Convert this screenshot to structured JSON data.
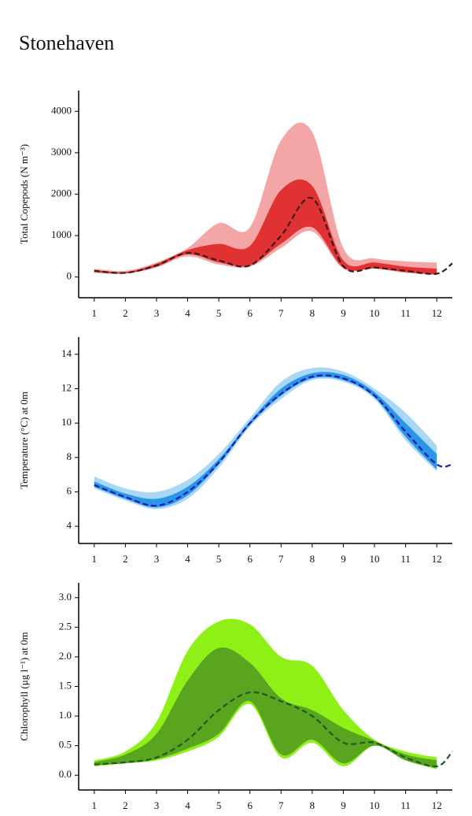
{
  "title": "Stonehaven",
  "chart_data": [
    {
      "type": "line",
      "ylabel": "Total Copepods (N m⁻³)",
      "x": [
        1,
        2,
        3,
        4,
        5,
        6,
        7,
        8,
        9,
        10,
        11,
        12,
        12.5
      ],
      "xlim": [
        0.5,
        12.5
      ],
      "xticks": [
        1,
        2,
        3,
        4,
        5,
        6,
        7,
        8,
        9,
        10,
        11,
        12
      ],
      "ylim": [
        -500,
        4500
      ],
      "yticks": [
        0,
        1000,
        2000,
        3000,
        4000
      ],
      "bands": [
        {
          "color": "#f4a6a6",
          "upper": [
            200,
            150,
            350,
            700,
            1300,
            1200,
            3300,
            3500,
            700,
            450,
            380,
            350,
            null
          ],
          "lower": [
            100,
            80,
            230,
            500,
            300,
            250,
            700,
            1100,
            200,
            200,
            100,
            50,
            null
          ]
        },
        {
          "color": "#e03232",
          "upper": [
            170,
            120,
            320,
            650,
            800,
            750,
            2100,
            2200,
            400,
            350,
            250,
            200,
            null
          ],
          "lower": [
            120,
            90,
            250,
            550,
            350,
            280,
            800,
            1200,
            230,
            210,
            120,
            60,
            null
          ]
        }
      ],
      "median": {
        "color": "#3a1a1a",
        "values": [
          150,
          100,
          280,
          580,
          400,
          280,
          1000,
          1900,
          260,
          230,
          150,
          80,
          330
        ]
      }
    },
    {
      "type": "line",
      "ylabel": "Temperature (°C) at 0m",
      "x": [
        1,
        2,
        3,
        4,
        5,
        6,
        7,
        8,
        9,
        10,
        11,
        12,
        12.5
      ],
      "xlim": [
        0.5,
        12.5
      ],
      "xticks": [
        1,
        2,
        3,
        4,
        5,
        6,
        7,
        8,
        9,
        10,
        11,
        12
      ],
      "ylim": [
        3,
        15
      ],
      "yticks": [
        4,
        6,
        8,
        10,
        12,
        14
      ],
      "bands": [
        {
          "color": "#a8d8f5",
          "upper": [
            6.9,
            6.2,
            6.0,
            6.7,
            8.2,
            10.3,
            12.4,
            13.2,
            13.0,
            12.0,
            10.6,
            8.7,
            null
          ],
          "lower": [
            6.2,
            5.5,
            5.0,
            5.6,
            7.4,
            9.8,
            11.4,
            12.5,
            12.4,
            11.4,
            9.0,
            7.2,
            null
          ]
        },
        {
          "color": "#2b95e6",
          "upper": [
            6.6,
            5.9,
            5.6,
            6.3,
            7.9,
            10.1,
            12.0,
            12.9,
            12.8,
            11.8,
            10.0,
            8.2,
            null
          ],
          "lower": [
            6.3,
            5.6,
            5.1,
            5.8,
            7.6,
            9.9,
            11.6,
            12.6,
            12.5,
            11.5,
            9.2,
            7.3,
            null
          ]
        }
      ],
      "median": {
        "color": "#1a1ab0",
        "values": [
          6.4,
          5.7,
          5.2,
          6.0,
          7.7,
          10.0,
          11.7,
          12.7,
          12.6,
          11.6,
          9.5,
          7.6,
          7.6
        ]
      }
    },
    {
      "type": "line",
      "ylabel": "Chlorophyll (μg l⁻¹) at 0m",
      "x": [
        1,
        2,
        3,
        4,
        5,
        6,
        7,
        8,
        9,
        10,
        11,
        12,
        12.5
      ],
      "xlim": [
        0.5,
        12.5
      ],
      "xticks": [
        1,
        2,
        3,
        4,
        5,
        6,
        7,
        8,
        9,
        10,
        11,
        12
      ],
      "ylim": [
        -0.25,
        3.25
      ],
      "yticks": [
        {
          "value": 0,
          "label": "0.0"
        },
        0.5,
        {
          "value": 1,
          "label": "1.0"
        },
        1.5,
        {
          "value": 2,
          "label": "2.0"
        },
        2.5,
        {
          "value": 3,
          "label": "3.0"
        }
      ],
      "bands": [
        {
          "color": "#8ef016",
          "upper": [
            0.25,
            0.4,
            0.9,
            2.1,
            2.6,
            2.55,
            2.0,
            1.85,
            1.1,
            0.6,
            0.4,
            0.3,
            null
          ],
          "lower": [
            0.15,
            0.2,
            0.25,
            0.4,
            0.65,
            1.2,
            0.3,
            0.55,
            0.15,
            0.5,
            0.25,
            0.1,
            null
          ]
        },
        {
          "color": "#5aa520",
          "upper": [
            0.22,
            0.35,
            0.7,
            1.6,
            2.15,
            1.9,
            1.3,
            1.1,
            0.8,
            0.58,
            0.35,
            0.25,
            null
          ],
          "lower": [
            0.17,
            0.2,
            0.27,
            0.45,
            0.7,
            1.25,
            0.35,
            0.6,
            0.2,
            0.5,
            0.25,
            0.12,
            null
          ]
        }
      ],
      "median": {
        "color": "#1f5a1f",
        "values": [
          0.18,
          0.22,
          0.3,
          0.6,
          1.1,
          1.4,
          1.25,
          1.0,
          0.55,
          0.55,
          0.3,
          0.15,
          0.4
        ]
      }
    }
  ]
}
